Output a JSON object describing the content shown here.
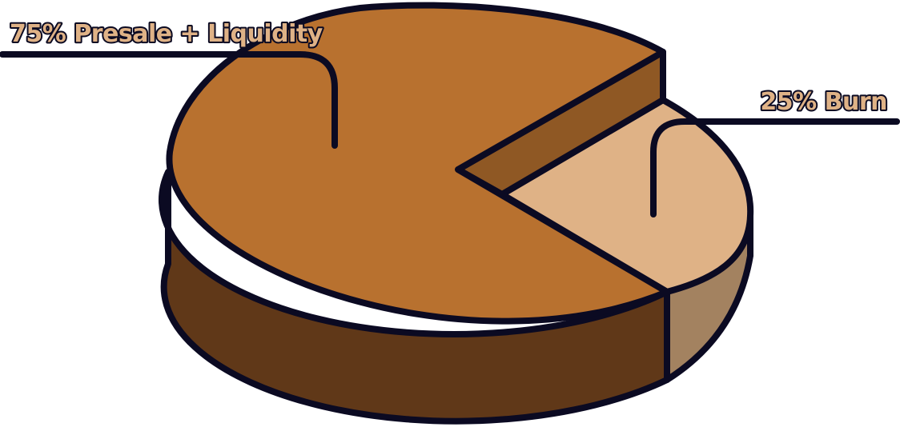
{
  "chart_data": {
    "type": "pie",
    "style": "3d-extruded",
    "title": "",
    "slices": [
      {
        "label": "75% Presale + Liquidity",
        "value": 75,
        "color": "#b8712f",
        "side_color": "#603818"
      },
      {
        "label": "25% Burn",
        "value": 25,
        "color": "#dfb286",
        "side_color": "#a38260"
      }
    ],
    "outline_color": "#0b0a22",
    "label_color": "#dfb286",
    "legend": "none"
  }
}
